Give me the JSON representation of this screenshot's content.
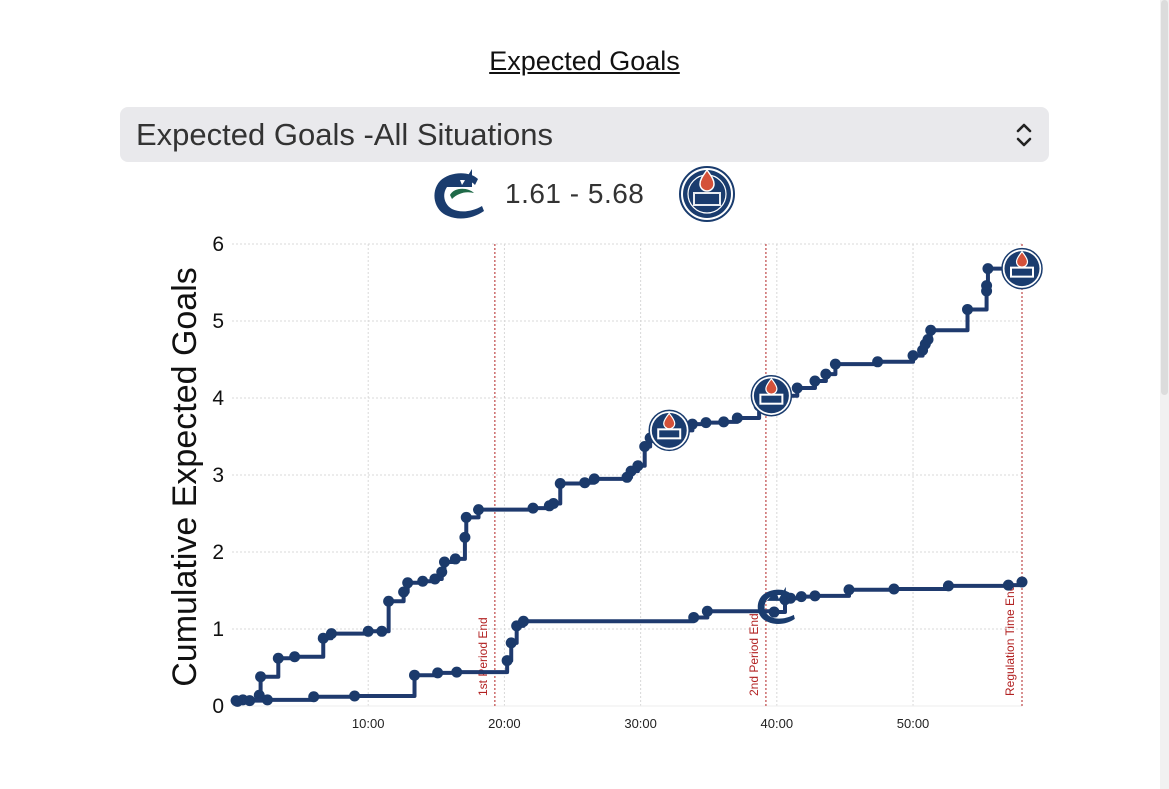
{
  "header": {
    "title": "Expected Goals"
  },
  "situation_select": {
    "selected": "Expected Goals -All Situations"
  },
  "score": {
    "text": "1.61 - 5.68"
  },
  "colors": {
    "line": "#1f3a6e",
    "marker": "#1b3a6b",
    "vline": "#b22222",
    "grid": "#d8d8d8",
    "oilers_orange": "#d4513a",
    "canucks_navy": "#1a3c6e"
  },
  "icons": {
    "home_logo": "canucks-logo-icon",
    "away_logo": "oilers-logo-icon",
    "chevron": "chevron-up-down-icon"
  },
  "chart_data": {
    "type": "line",
    "xlabel": "",
    "ylabel": "Cumulative Expected Goals",
    "xlim": [
      0,
      58
    ],
    "ylim": [
      0,
      6
    ],
    "x_ticks": [
      {
        "value": 10,
        "label": "10:00"
      },
      {
        "value": 20,
        "label": "20:00"
      },
      {
        "value": 30,
        "label": "30:00"
      },
      {
        "value": 40,
        "label": "40:00"
      },
      {
        "value": 50,
        "label": "50:00"
      }
    ],
    "y_ticks": [
      0,
      1,
      2,
      3,
      4,
      5,
      6
    ],
    "grid": true,
    "vlines": [
      {
        "x": 19.3,
        "label": "1st Period End"
      },
      {
        "x": 39.2,
        "label": "2nd Period End"
      },
      {
        "x": 58.0,
        "label": "Regulation Time End"
      }
    ],
    "series": [
      {
        "team": "oilers",
        "x": [
          0.3,
          0.8,
          2.0,
          2.1,
          3.4,
          4.6,
          6.7,
          7.3,
          10.0,
          11.0,
          11.5,
          12.6,
          12.9,
          14.0,
          14.9,
          15.4,
          15.6,
          16.4,
          17.1,
          17.2,
          18.1,
          22.1,
          23.3,
          23.6,
          24.1,
          25.9,
          26.6,
          29.0,
          29.3,
          29.8,
          30.3,
          30.7,
          32.1,
          33.8,
          34.8,
          36.1,
          37.1,
          38.7,
          39.8,
          41.5,
          42.8,
          43.6,
          44.3,
          47.4,
          50.0,
          50.7,
          50.9,
          51.1,
          51.3,
          54.0,
          55.4,
          55.4,
          55.5,
          58.0
        ],
        "y": [
          0.07,
          0.08,
          0.14,
          0.38,
          0.62,
          0.64,
          0.88,
          0.94,
          0.97,
          0.97,
          1.36,
          1.48,
          1.6,
          1.62,
          1.65,
          1.74,
          1.87,
          1.91,
          2.19,
          2.45,
          2.55,
          2.57,
          2.6,
          2.63,
          2.89,
          2.9,
          2.95,
          2.97,
          3.05,
          3.12,
          3.37,
          3.48,
          3.58,
          3.66,
          3.68,
          3.69,
          3.74,
          3.9,
          4.03,
          4.13,
          4.22,
          4.31,
          4.44,
          4.47,
          4.55,
          4.62,
          4.7,
          4.76,
          4.88,
          5.15,
          5.39,
          5.46,
          5.68,
          5.68
        ]
      },
      {
        "team": "canucks",
        "x": [
          0.4,
          1.3,
          2.6,
          6.0,
          9.0,
          13.4,
          15.1,
          16.5,
          20.2,
          20.5,
          20.9,
          21.4,
          33.9,
          34.9,
          39.8,
          40.6,
          41.0,
          41.8,
          42.8,
          45.3,
          48.6,
          52.6,
          57.0,
          58.0
        ],
        "y": [
          0.06,
          0.07,
          0.08,
          0.12,
          0.13,
          0.4,
          0.43,
          0.44,
          0.59,
          0.82,
          1.04,
          1.1,
          1.15,
          1.23,
          1.22,
          1.38,
          1.4,
          1.42,
          1.43,
          1.51,
          1.52,
          1.56,
          1.57,
          1.61
        ]
      }
    ],
    "goal_logos": [
      {
        "team": "oilers",
        "x": 32.1,
        "y": 3.58
      },
      {
        "team": "oilers",
        "x": 39.6,
        "y": 4.03
      },
      {
        "team": "oilers",
        "x": 58.0,
        "y": 5.68
      },
      {
        "team": "canucks",
        "x": 40.0,
        "y": 1.3
      }
    ]
  }
}
